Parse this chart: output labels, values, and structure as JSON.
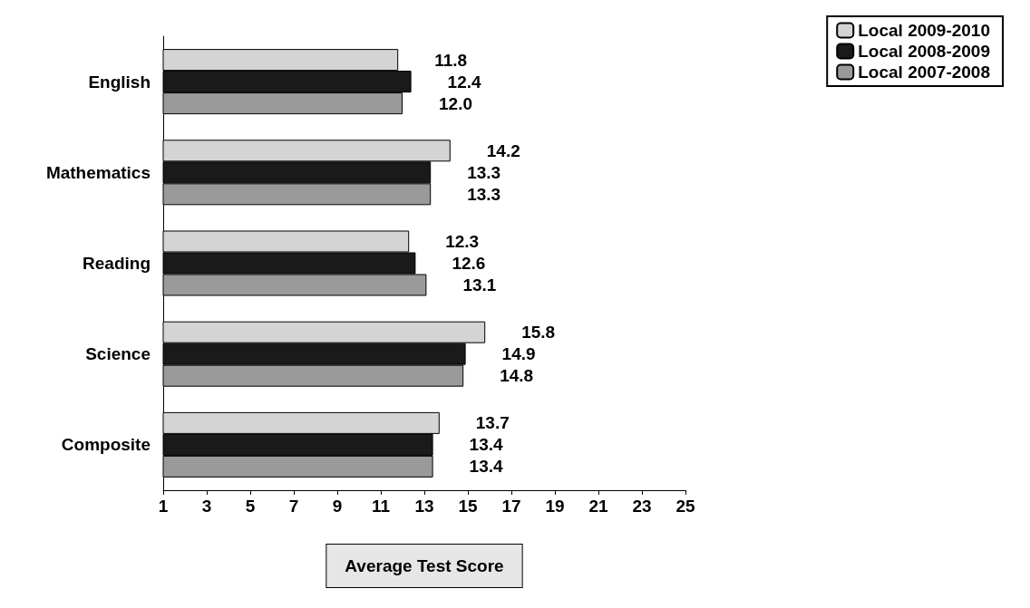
{
  "chart_data": {
    "type": "bar",
    "orientation": "horizontal",
    "categories": [
      "English",
      "Mathematics",
      "Reading",
      "Science",
      "Composite"
    ],
    "series": [
      {
        "name": "Local 2009-2010",
        "color": "#d4d4d4",
        "values": [
          11.8,
          14.2,
          12.3,
          15.8,
          13.7
        ],
        "value_labels": [
          "11.8",
          "14.2",
          "12.3",
          "15.8",
          "13.7"
        ]
      },
      {
        "name": "Local 2008-2009",
        "color": "#1a1a1a",
        "values": [
          12.4,
          13.3,
          12.6,
          14.9,
          13.4
        ],
        "value_labels": [
          "12.4",
          "13.3",
          "12.6",
          "14.9",
          "13.4"
        ]
      },
      {
        "name": "Local 2007-2008",
        "color": "#9a9a9a",
        "values": [
          12.0,
          13.3,
          13.1,
          14.8,
          13.4
        ],
        "value_labels": [
          "12.0",
          "13.3",
          "13.1",
          "14.8",
          "13.4"
        ]
      }
    ],
    "xlabel": "Average Test Score",
    "xlim": [
      1,
      25
    ],
    "xticks": [
      1,
      3,
      5,
      7,
      9,
      11,
      13,
      15,
      17,
      19,
      21,
      23,
      25
    ],
    "legend": "top right",
    "grid": false
  }
}
